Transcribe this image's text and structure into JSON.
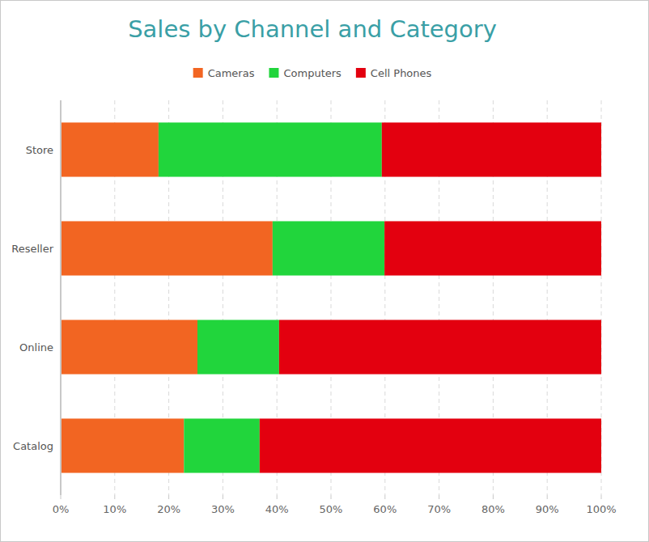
{
  "chart_data": {
    "type": "bar",
    "title": "Sales by Channel and Category",
    "orientation": "horizontal",
    "stacked": true,
    "grid": true,
    "legend": "top",
    "categories": [
      "Store",
      "Reseller",
      "Online",
      "Catalog"
    ],
    "series": [
      {
        "name": "Cameras",
        "color": "#f26522",
        "values": [
          18.1,
          39.2,
          25.3,
          22.8
        ]
      },
      {
        "name": "Computers",
        "color": "#21d53c",
        "values": [
          41.3,
          20.7,
          15.1,
          14.0
        ]
      },
      {
        "name": "Cell Phones",
        "color": "#e3000f",
        "values": [
          40.6,
          40.1,
          59.6,
          63.2
        ]
      }
    ],
    "xlim": [
      0,
      100
    ],
    "xticks": [
      {
        "value": 0,
        "label": "0%"
      },
      {
        "value": 10,
        "label": "10%"
      },
      {
        "value": 20,
        "label": "20%"
      },
      {
        "value": 30,
        "label": "30%"
      },
      {
        "value": 40,
        "label": "40%"
      },
      {
        "value": 50,
        "label": "50%"
      },
      {
        "value": 60,
        "label": "60%"
      },
      {
        "value": 70,
        "label": "70%"
      },
      {
        "value": 80,
        "label": "80%"
      },
      {
        "value": 90,
        "label": "90%"
      },
      {
        "value": 100,
        "label": "100%"
      }
    ]
  }
}
